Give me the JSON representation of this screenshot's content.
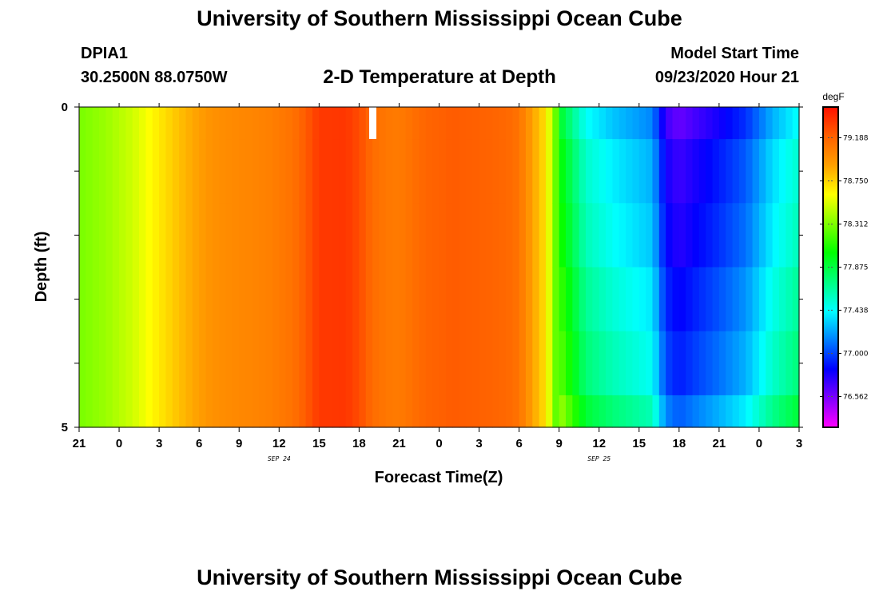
{
  "header": {
    "title": "University of Southern Mississippi Ocean Cube",
    "station": "DPIA1",
    "coords": "30.2500N 88.0750W",
    "plot_title": "2-D Temperature at Depth",
    "start_label": "Model Start Time",
    "start_value": "09/23/2020 Hour 21"
  },
  "footer": {
    "title": "University of Southern Mississippi Ocean Cube"
  },
  "chart_data": {
    "type": "heatmap",
    "title": "2-D Temperature at Depth",
    "xlabel": "Forecast Time(Z)",
    "ylabel": "Depth (ft)",
    "x_ticks": [
      "21",
      "0",
      "3",
      "6",
      "9",
      "12",
      "15",
      "18",
      "21",
      "0",
      "3",
      "6",
      "9",
      "12",
      "15",
      "18",
      "21",
      "0",
      "3"
    ],
    "x_range_hours": [
      0,
      54
    ],
    "date_labels": [
      {
        "label": "SEP 24",
        "hour": 15
      },
      {
        "label": "SEP 25",
        "hour": 39
      }
    ],
    "y_ticks": [
      "0",
      "5"
    ],
    "y_range_ft": [
      0,
      5
    ],
    "colorbar": {
      "unit": "degF",
      "min": 76.25,
      "max": 79.5,
      "tick_labels": [
        "79.188",
        "78.750",
        "78.312",
        "77.875",
        "77.438",
        "77.000",
        "76.562"
      ],
      "colors": [
        "#ff00ff",
        "#7f00ff",
        "#0000ff",
        "#0080ff",
        "#00ffff",
        "#00ff80",
        "#00ff00",
        "#80ff00",
        "#ffff00",
        "#ffa000",
        "#ff6000",
        "#ff1000"
      ]
    },
    "hourly_profile": [
      {
        "hour": 0,
        "temp": 78.3
      },
      {
        "hour": 2,
        "temp": 78.38
      },
      {
        "hour": 4,
        "temp": 78.5
      },
      {
        "hour": 6,
        "temp": 78.68
      },
      {
        "hour": 8,
        "temp": 78.85
      },
      {
        "hour": 10,
        "temp": 78.98
      },
      {
        "hour": 12,
        "temp": 79.02
      },
      {
        "hour": 14,
        "temp": 79.05
      },
      {
        "hour": 16,
        "temp": 79.12
      },
      {
        "hour": 17,
        "temp": 79.22
      },
      {
        "hour": 18,
        "temp": 79.35
      },
      {
        "hour": 20,
        "temp": 79.36
      },
      {
        "hour": 21,
        "temp": 79.28
      },
      {
        "hour": 22,
        "temp": 79.15
      },
      {
        "hour": 23,
        "temp": 79.1
      },
      {
        "hour": 24,
        "temp": 79.08
      },
      {
        "hour": 26,
        "temp": 79.18
      },
      {
        "hour": 28,
        "temp": 79.22
      },
      {
        "hour": 30,
        "temp": 79.2
      },
      {
        "hour": 32,
        "temp": 79.17
      },
      {
        "hour": 33,
        "temp": 79.12
      },
      {
        "hour": 35,
        "temp": 78.7
      },
      {
        "hour": 36,
        "temp": 78.1
      },
      {
        "hour": 37,
        "temp": 77.85
      },
      {
        "hour": 38,
        "temp": 77.6
      },
      {
        "hour": 40,
        "temp": 77.45
      },
      {
        "hour": 42,
        "temp": 77.35
      },
      {
        "hour": 43,
        "temp": 77.3
      },
      {
        "hour": 44,
        "temp": 76.85
      },
      {
        "hour": 45,
        "temp": 76.75
      },
      {
        "hour": 46,
        "temp": 76.82
      },
      {
        "hour": 48,
        "temp": 76.95
      },
      {
        "hour": 50,
        "temp": 77.1
      },
      {
        "hour": 52,
        "temp": 77.4
      },
      {
        "hour": 54,
        "temp": 77.6
      }
    ],
    "depth_adjust_late": [
      {
        "depth_band": "0.0-0.5",
        "delta": -0.15
      },
      {
        "depth_band": "0.5-1.5",
        "delta": -0.05
      },
      {
        "depth_band": "1.5-2.5",
        "delta": 0.0
      },
      {
        "depth_band": "2.5-3.5",
        "delta": 0.08
      },
      {
        "depth_band": "3.5-4.5",
        "delta": 0.15
      },
      {
        "depth_band": "4.5-5.0",
        "delta": 0.3
      }
    ]
  }
}
